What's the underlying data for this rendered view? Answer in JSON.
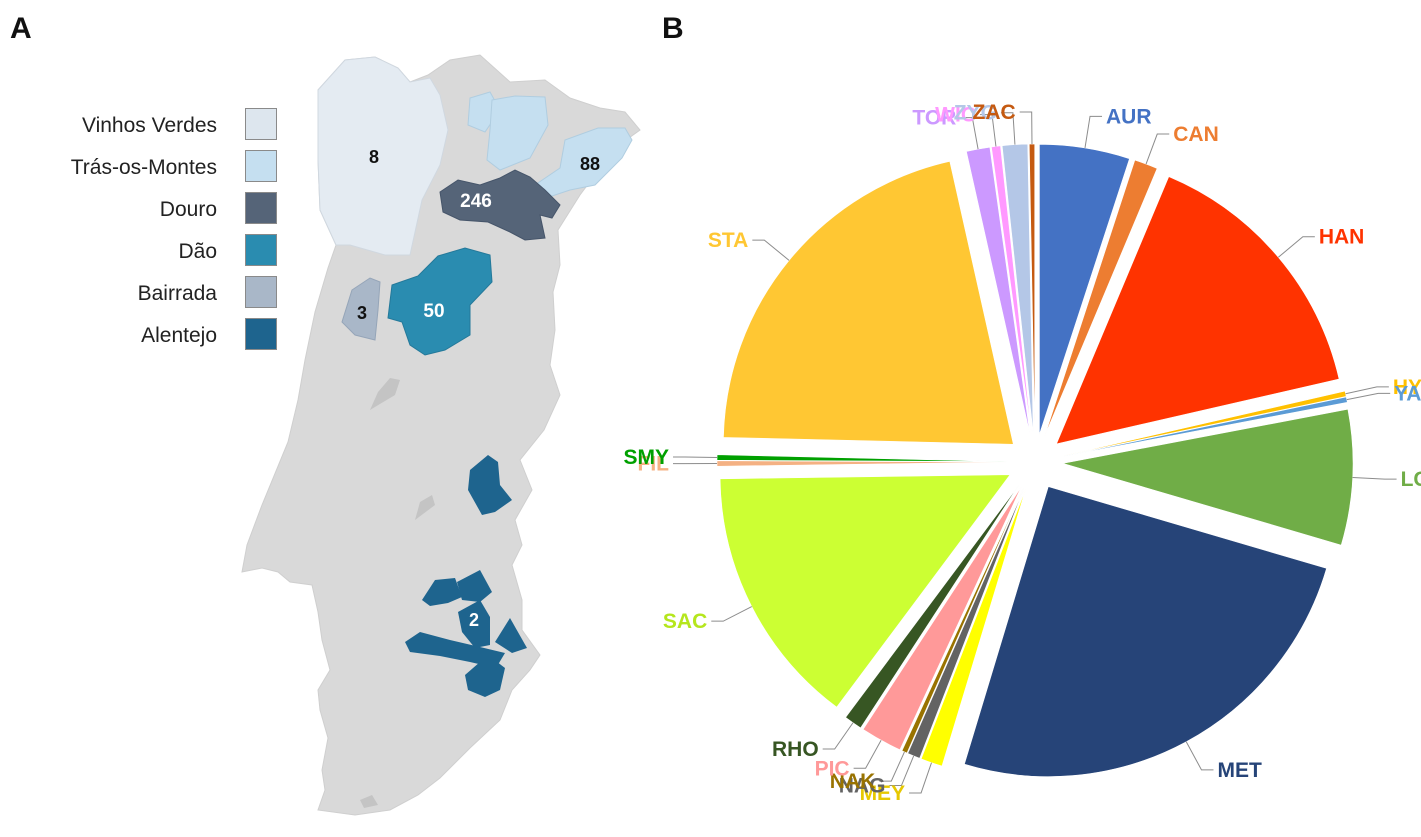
{
  "panels": {
    "a": "A",
    "b": "B"
  },
  "map": {
    "legend": [
      {
        "label": "Vinhos Verdes",
        "color": "#dde6ee"
      },
      {
        "label": "Trás-os-Montes",
        "color": "#c5dff0"
      },
      {
        "label": "Douro",
        "color": "#556478"
      },
      {
        "label": "Dão",
        "color": "#2a8cb0"
      },
      {
        "label": "Bairrada",
        "color": "#a9b7c8"
      },
      {
        "label": "Alentejo",
        "color": "#1e648e"
      }
    ],
    "region_counts": {
      "vinhos_verdes": "8",
      "tras_os_montes": "88",
      "douro": "246",
      "dao": "50",
      "bairrada": "3",
      "alentejo": "2"
    },
    "base_color": "#d9d9d9"
  },
  "chart_data": {
    "type": "pie",
    "title": "",
    "slices": [
      {
        "label": "AUR",
        "value": 5.0,
        "color": "#4472c4"
      },
      {
        "label": "CAN",
        "value": 1.3,
        "color": "#ed7d31"
      },
      {
        "label": "HAN",
        "value": 15.0,
        "color": "#ff3300"
      },
      {
        "label": "HYP",
        "value": 0.3,
        "color": "#ffc000"
      },
      {
        "label": "YAM",
        "value": 0.3,
        "color": "#5b9bd5"
      },
      {
        "label": "LCH",
        "value": 7.5,
        "color": "#70ad47"
      },
      {
        "label": "MET",
        "value": 25.0,
        "color": "#264478"
      },
      {
        "label": "MEY",
        "value": 1.2,
        "color": "#ffff00"
      },
      {
        "label": "NAG",
        "value": 0.7,
        "color": "#636363"
      },
      {
        "label": "NAK",
        "value": 0.3,
        "color": "#997300"
      },
      {
        "label": "PIC",
        "value": 2.3,
        "color": "#ff9999"
      },
      {
        "label": "RHO",
        "value": 1.0,
        "color": "#375623"
      },
      {
        "label": "SAC",
        "value": 14.5,
        "color": "#ccff33"
      },
      {
        "label": "FIL",
        "value": 0.3,
        "color": "#f4b183"
      },
      {
        "label": "SMY",
        "value": 0.3,
        "color": "#00a000"
      },
      {
        "label": "STA",
        "value": 21.0,
        "color": "#ffc733"
      },
      {
        "label": "TOR",
        "value": 1.3,
        "color": "#cc99ff"
      },
      {
        "label": "WIC",
        "value": 0.5,
        "color": "#ff99ff"
      },
      {
        "label": "ZYG",
        "value": 1.4,
        "color": "#b4c7e7"
      },
      {
        "label": "ZAC",
        "value": 0.3,
        "color": "#c55a11"
      }
    ]
  }
}
